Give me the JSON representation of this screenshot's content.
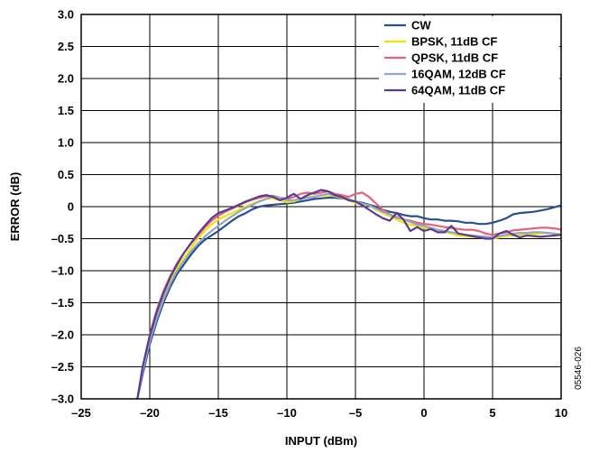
{
  "chart_data": {
    "type": "line",
    "title": "",
    "xlabel": "INPUT (dBm)",
    "ylabel": "ERROR (dB)",
    "xlim": [
      -25,
      10
    ],
    "ylim": [
      -3.0,
      3.0
    ],
    "grid": true,
    "legend_position": "top-right",
    "x_ticks": [
      -25,
      -20,
      -15,
      -10,
      -5,
      0,
      5,
      10
    ],
    "x_tick_labels": [
      "–25",
      "–20",
      "–15",
      "–10",
      "–5",
      "0",
      "5",
      "10"
    ],
    "y_ticks": [
      3.0,
      2.5,
      2.0,
      1.5,
      1.0,
      0.5,
      0,
      -0.5,
      -1.0,
      -1.5,
      -2.0,
      -2.5,
      -3.0
    ],
    "y_tick_labels": [
      "3.0",
      "2.5",
      "2.0",
      "1.5",
      "1.0",
      "0.5",
      "0",
      "–0.5",
      "–1.0",
      "–1.5",
      "–2.0",
      "–2.5",
      "–3.0"
    ],
    "figure_id": "05546-026",
    "series": [
      {
        "name": "CW",
        "color": "#2b4f8c",
        "x": [
          -20.9,
          -20.5,
          -20,
          -19.5,
          -19,
          -18.5,
          -18,
          -17.5,
          -17,
          -16.5,
          -16,
          -15.5,
          -15,
          -14.5,
          -14,
          -13.5,
          -13,
          -12.5,
          -12,
          -11.5,
          -11,
          -10.5,
          -10,
          -9.5,
          -9,
          -8.5,
          -8,
          -7.5,
          -7,
          -6.5,
          -6,
          -5.5,
          -5,
          -4.5,
          -4,
          -3.5,
          -3,
          -2.5,
          -2,
          -1.5,
          -1,
          -0.5,
          0,
          0.5,
          1,
          1.5,
          2,
          2.5,
          3,
          3.5,
          4,
          4.5,
          5,
          5.5,
          6,
          6.5,
          7,
          7.5,
          8,
          8.5,
          9,
          9.5,
          10
        ],
        "y": [
          -3.0,
          -2.6,
          -2.15,
          -1.8,
          -1.5,
          -1.25,
          -1.05,
          -0.9,
          -0.75,
          -0.62,
          -0.52,
          -0.45,
          -0.38,
          -0.3,
          -0.22,
          -0.15,
          -0.1,
          -0.04,
          0.0,
          0.02,
          0.03,
          0.04,
          0.05,
          0.06,
          0.08,
          0.1,
          0.12,
          0.13,
          0.14,
          0.14,
          0.13,
          0.11,
          0.08,
          0.06,
          0.03,
          0.0,
          -0.05,
          -0.08,
          -0.1,
          -0.13,
          -0.15,
          -0.15,
          -0.18,
          -0.2,
          -0.2,
          -0.22,
          -0.22,
          -0.23,
          -0.25,
          -0.25,
          -0.27,
          -0.27,
          -0.25,
          -0.22,
          -0.18,
          -0.12,
          -0.1,
          -0.09,
          -0.08,
          -0.06,
          -0.04,
          -0.01,
          0.02
        ]
      },
      {
        "name": "BPSK, 11dB CF",
        "color": "#f2e600",
        "x": [
          -20.9,
          -20.5,
          -20,
          -19.5,
          -19,
          -18.5,
          -18,
          -17.5,
          -17,
          -16.5,
          -16,
          -15.5,
          -15,
          -14.5,
          -14,
          -13.5,
          -13,
          -12.5,
          -12,
          -11.5,
          -11,
          -10.5,
          -10,
          -9.5,
          -9,
          -8.5,
          -8,
          -7.5,
          -7,
          -6.5,
          -6,
          -5.5,
          -5,
          -4.5,
          -4,
          -3.5,
          -3,
          -2.5,
          -2,
          -1.5,
          -1,
          -0.5,
          0,
          0.5,
          1,
          1.5,
          2,
          2.5,
          3,
          3.5,
          4,
          4.5,
          5,
          5.5,
          6,
          6.5,
          7,
          7.5,
          8,
          8.5,
          9,
          9.5,
          10
        ],
        "y": [
          -3.0,
          -2.5,
          -2.05,
          -1.7,
          -1.4,
          -1.15,
          -0.95,
          -0.8,
          -0.65,
          -0.5,
          -0.38,
          -0.28,
          -0.2,
          -0.15,
          -0.1,
          -0.05,
          0.0,
          0.05,
          0.09,
          0.12,
          0.13,
          0.1,
          0.07,
          0.08,
          0.12,
          0.15,
          0.16,
          0.17,
          0.18,
          0.16,
          0.14,
          0.1,
          0.06,
          0.04,
          0.02,
          -0.05,
          -0.1,
          -0.15,
          -0.2,
          -0.25,
          -0.28,
          -0.3,
          -0.33,
          -0.35,
          -0.37,
          -0.4,
          -0.42,
          -0.45,
          -0.46,
          -0.47,
          -0.48,
          -0.49,
          -0.5,
          -0.48,
          -0.46,
          -0.45,
          -0.44,
          -0.44,
          -0.43,
          -0.42,
          -0.41,
          -0.42,
          -0.43
        ]
      },
      {
        "name": "QPSK, 11dB CF",
        "color": "#e8607a",
        "x": [
          -20.9,
          -20.5,
          -20,
          -19.5,
          -19,
          -18.5,
          -18,
          -17.5,
          -17,
          -16.5,
          -16,
          -15.5,
          -15,
          -14.5,
          -14,
          -13.5,
          -13,
          -12.5,
          -12,
          -11.5,
          -11,
          -10.5,
          -10,
          -9.5,
          -9,
          -8.5,
          -8,
          -7.5,
          -7,
          -6.5,
          -6,
          -5.5,
          -5,
          -4.5,
          -4,
          -3.5,
          -3,
          -2.5,
          -2,
          -1.5,
          -1,
          -0.5,
          0,
          0.5,
          1,
          1.5,
          2,
          2.5,
          3,
          3.5,
          4,
          4.5,
          5,
          5.5,
          6,
          6.5,
          7,
          7.5,
          8,
          8.5,
          9,
          9.5,
          10
        ],
        "y": [
          -3.0,
          -2.5,
          -2.0,
          -1.62,
          -1.32,
          -1.08,
          -0.88,
          -0.72,
          -0.58,
          -0.45,
          -0.33,
          -0.22,
          -0.14,
          -0.08,
          -0.03,
          0.02,
          0.07,
          0.11,
          0.14,
          0.16,
          0.17,
          0.14,
          0.12,
          0.15,
          0.2,
          0.22,
          0.2,
          0.22,
          0.24,
          0.2,
          0.18,
          0.15,
          0.2,
          0.22,
          0.15,
          0.05,
          -0.05,
          -0.12,
          -0.17,
          -0.2,
          -0.22,
          -0.25,
          -0.27,
          -0.28,
          -0.3,
          -0.32,
          -0.33,
          -0.35,
          -0.36,
          -0.36,
          -0.38,
          -0.42,
          -0.44,
          -0.42,
          -0.4,
          -0.37,
          -0.36,
          -0.35,
          -0.34,
          -0.33,
          -0.33,
          -0.34,
          -0.36
        ]
      },
      {
        "name": "16QAM, 12dB CF",
        "color": "#8fa8cc",
        "x": [
          -20.9,
          -20.5,
          -20,
          -19.5,
          -19,
          -18.5,
          -18,
          -17.5,
          -17,
          -16.5,
          -16,
          -15.5,
          -15,
          -14.5,
          -14,
          -13.5,
          -13,
          -12.5,
          -12,
          -11.5,
          -11,
          -10.5,
          -10,
          -9.5,
          -9,
          -8.5,
          -8,
          -7.5,
          -7,
          -6.5,
          -6,
          -5.5,
          -5,
          -4.5,
          -4,
          -3.5,
          -3,
          -2.5,
          -2,
          -1.5,
          -1,
          -0.5,
          0,
          0.5,
          1,
          1.5,
          2,
          2.5,
          3,
          3.5,
          4,
          4.5,
          5,
          5.5,
          6,
          6.5,
          7,
          7.5,
          8,
          8.5,
          9,
          9.5,
          10
        ],
        "y": [
          -3.0,
          -2.55,
          -2.1,
          -1.75,
          -1.45,
          -1.2,
          -1.0,
          -0.85,
          -0.7,
          -0.58,
          -0.47,
          -0.38,
          -0.3,
          -0.22,
          -0.15,
          -0.08,
          -0.02,
          0.03,
          0.08,
          0.12,
          0.16,
          0.14,
          0.1,
          0.1,
          0.12,
          0.14,
          0.15,
          0.18,
          0.2,
          0.17,
          0.15,
          0.12,
          0.08,
          0.05,
          0.02,
          -0.03,
          -0.08,
          -0.12,
          -0.16,
          -0.2,
          -0.24,
          -0.28,
          -0.3,
          -0.33,
          -0.36,
          -0.38,
          -0.4,
          -0.42,
          -0.44,
          -0.45,
          -0.46,
          -0.47,
          -0.48,
          -0.46,
          -0.44,
          -0.42,
          -0.41,
          -0.41,
          -0.4,
          -0.4,
          -0.41,
          -0.42,
          -0.44
        ]
      },
      {
        "name": "64QAM, 11dB CF",
        "color": "#5b3a94",
        "x": [
          -20.9,
          -20.5,
          -20,
          -19.5,
          -19,
          -18.5,
          -18,
          -17.5,
          -17,
          -16.5,
          -16,
          -15.5,
          -15,
          -14.5,
          -14,
          -13.5,
          -13,
          -12.5,
          -12,
          -11.5,
          -11,
          -10.5,
          -10,
          -9.5,
          -9,
          -8.5,
          -8,
          -7.5,
          -7,
          -6.5,
          -6,
          -5.5,
          -5,
          -4.5,
          -4,
          -3.5,
          -3,
          -2.5,
          -2,
          -1.5,
          -1,
          -0.5,
          0,
          0.5,
          1,
          1.5,
          2,
          2.5,
          3,
          3.5,
          4,
          4.5,
          5,
          5.5,
          6,
          6.5,
          7,
          7.5,
          8,
          8.5,
          9,
          9.5,
          10
        ],
        "y": [
          -3.0,
          -2.48,
          -2.02,
          -1.65,
          -1.35,
          -1.1,
          -0.9,
          -0.72,
          -0.57,
          -0.43,
          -0.3,
          -0.18,
          -0.1,
          -0.06,
          -0.02,
          0.03,
          0.08,
          0.12,
          0.16,
          0.18,
          0.15,
          0.1,
          0.14,
          0.2,
          0.12,
          0.18,
          0.22,
          0.26,
          0.24,
          0.18,
          0.15,
          0.1,
          0.08,
          0.02,
          -0.05,
          -0.12,
          -0.18,
          -0.22,
          -0.1,
          -0.2,
          -0.38,
          -0.32,
          -0.38,
          -0.35,
          -0.4,
          -0.4,
          -0.3,
          -0.42,
          -0.44,
          -0.46,
          -0.48,
          -0.5,
          -0.5,
          -0.42,
          -0.38,
          -0.44,
          -0.48,
          -0.45,
          -0.46,
          -0.47,
          -0.46,
          -0.45,
          -0.44
        ]
      }
    ]
  }
}
